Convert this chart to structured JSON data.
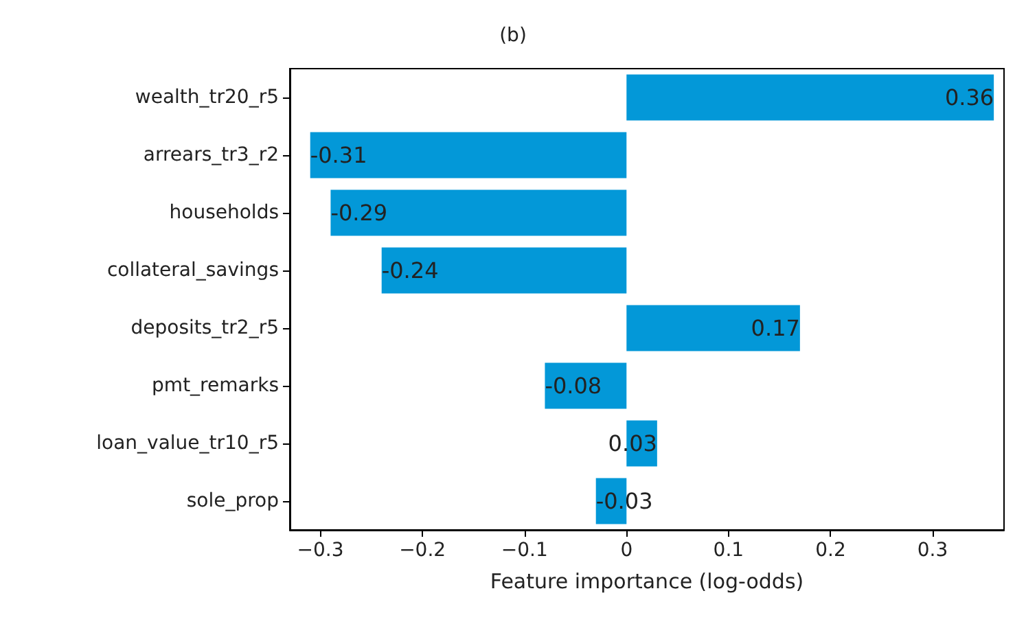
{
  "chart_data": {
    "type": "bar",
    "orientation": "horizontal",
    "title": "(b)",
    "xlabel": "Feature importance (log-odds)",
    "categories": [
      "wealth_tr20_r5",
      "arrears_tr3_r2",
      "households",
      "collateral_savings",
      "deposits_tr2_r5",
      "pmt_remarks",
      "loan_value_tr10_r5",
      "sole_prop"
    ],
    "values": [
      0.36,
      -0.31,
      -0.29,
      -0.24,
      0.17,
      -0.08,
      0.03,
      -0.03
    ],
    "color": "#0398d8",
    "xlim": [
      -0.33,
      0.37
    ],
    "xticks": [
      {
        "value": -0.3,
        "label": "−0.3"
      },
      {
        "value": -0.2,
        "label": "−0.2"
      },
      {
        "value": -0.1,
        "label": "−0.1"
      },
      0,
      0.1,
      0.2,
      0.3
    ],
    "grid": false,
    "data_labels": true
  }
}
